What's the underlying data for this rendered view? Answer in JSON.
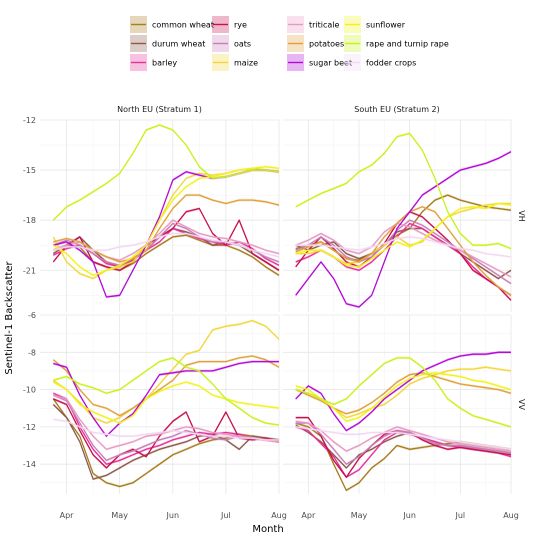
{
  "chart_data": {
    "type": "line",
    "xlabel": "Month",
    "ylabel": "Sentinel-1 Backscatter",
    "x_ticks": [
      "Apr",
      "May",
      "Jun",
      "Jul",
      "Aug"
    ],
    "columns": [
      "North EU (Stratum 1)",
      "South EU (Stratum 2)"
    ],
    "rows": [
      "VH",
      "VV"
    ],
    "x": [
      0,
      0.5,
      1,
      1.5,
      2,
      2.5,
      3,
      3.5,
      4,
      4.5,
      5,
      5.5,
      6,
      6.5,
      7,
      7.5,
      8,
      8.5
    ],
    "ylim": {
      "VH": [
        -23.5,
        -12
      ],
      "VV": [
        -15.6,
        -6
      ]
    },
    "y_ticks": {
      "VH": [
        -21,
        -18,
        -15,
        -12
      ],
      "VV": [
        -14,
        -12,
        -10,
        -8,
        -6
      ]
    },
    "legend": {
      "position": "top",
      "entries": [
        {
          "name": "common wheat",
          "color": "#a67c1c"
        },
        {
          "name": "durum wheat",
          "color": "#8c5a4a"
        },
        {
          "name": "barley",
          "color": "#e8309a"
        },
        {
          "name": "rye",
          "color": "#c8104e"
        },
        {
          "name": "oats",
          "color": "#c87eb8"
        },
        {
          "name": "maize",
          "color": "#f2d63a"
        },
        {
          "name": "triticale",
          "color": "#e899c2"
        },
        {
          "name": "potatoes",
          "color": "#e0a03a"
        },
        {
          "name": "sugar beet",
          "color": "#b40ad8"
        },
        {
          "name": "sunflower",
          "color": "#f2f21a"
        },
        {
          "name": "rape and turnip rape",
          "color": "#c8f21a"
        },
        {
          "name": "fodder crops",
          "color": "#f2d8f2"
        }
      ]
    },
    "panels": {
      "North EU (Stratum 1)|VH": {
        "common wheat": [
          -19.8,
          -19.5,
          -19.6,
          -20.5,
          -20.8,
          -21,
          -20.6,
          -20,
          -19.5,
          -19,
          -18.9,
          -19.2,
          -19.5,
          -19.5,
          -19.8,
          -20.2,
          -20.8,
          -21.3
        ],
        "durum wheat": [
          -20,
          -19.5,
          -19,
          -19.8,
          -20.5,
          -20.8,
          -20.3,
          -19.8,
          -19,
          -18.5,
          -18.7,
          -19,
          -19.5,
          -19.3,
          -19.5,
          -20,
          -20.5,
          -21
        ],
        "barley": [
          -20.1,
          -19.7,
          -19.5,
          -20,
          -20.6,
          -20.8,
          -20.4,
          -19.8,
          -19.3,
          -18.5,
          -18.8,
          -19.1,
          -19.3,
          -19.5,
          -19.3,
          -19.7,
          -20.3,
          -20.7
        ],
        "rye": [
          -20.5,
          -19.5,
          -19,
          -20.5,
          -20.8,
          -21,
          -20.5,
          -19.5,
          -19,
          -18.5,
          -17.5,
          -17.3,
          -18.8,
          -19.5,
          -18,
          -20,
          -20.5,
          -21
        ],
        "oats": [
          -19.5,
          -19.2,
          -19.5,
          -20,
          -20.5,
          -20.7,
          -20.3,
          -19.8,
          -19,
          -18.2,
          -18.5,
          -19,
          -19.3,
          -19.3,
          -19.5,
          -19.8,
          -20.2,
          -20.5
        ],
        "maize": [
          -19,
          -20.5,
          -21.2,
          -21.5,
          -21,
          -20.8,
          -20.5,
          -19.5,
          -18,
          -16.5,
          -15.5,
          -15.2,
          -15.3,
          -15.2,
          -15,
          -14.9,
          -15,
          -15.1
        ],
        "triticale": [
          -19.8,
          -19.5,
          -19.3,
          -19.8,
          -20.2,
          -20.4,
          -20,
          -19.5,
          -18.8,
          -18,
          -18.4,
          -18.8,
          -19,
          -19.1,
          -19.3,
          -19.5,
          -19.8,
          -20
        ],
        "potatoes": [
          -19.3,
          -19.1,
          -19.3,
          -19.8,
          -20.2,
          -20.5,
          -20.3,
          -19.8,
          -18.5,
          -17.3,
          -16.5,
          -16.5,
          -16.8,
          -17,
          -16.8,
          -16.8,
          -16.9,
          -17.1
        ],
        "sugar beet": [
          -19.5,
          -19.3,
          -19.8,
          -20.5,
          -22.6,
          -22.5,
          -21,
          -19.5,
          -17.8,
          -15.6,
          -15.1,
          -15.3,
          -15.5,
          -15.4,
          -15.2,
          -15,
          -15,
          -15.1
        ],
        "sunflower": [
          -19.5,
          -20,
          -20.8,
          -21.3,
          -21,
          -20.7,
          -20.2,
          -19.5,
          -18,
          -16.8,
          -16,
          -15.5,
          -15.4,
          -15.2,
          -15,
          -14.9,
          -14.8,
          -14.9
        ],
        "rape and turnip rape": [
          -18,
          -17.2,
          -16.8,
          -16.3,
          -15.8,
          -15.2,
          -14,
          -12.6,
          -12.3,
          -12.6,
          -13.5,
          -14.8,
          -15.5,
          -15.4,
          -15.2,
          -15,
          -15,
          -15.1
        ],
        "fodder crops": [
          -19.8,
          -19.6,
          -19.6,
          -19.8,
          -19.8,
          -19.6,
          -19.5,
          -19.3,
          -19,
          -18.8,
          -18.8,
          -19,
          -19.2,
          -19.3,
          -19.5,
          -19.8,
          -20,
          -20.2
        ]
      },
      "South EU (Stratum 2)|VH": {
        "common wheat": [
          -19.7,
          -19.5,
          -19.3,
          -19.8,
          -20.3,
          -20.4,
          -20,
          -19.5,
          -18.9,
          -18.5,
          -17.5,
          -16.8,
          -16.5,
          -16.8,
          -17,
          -17.2,
          -17.3,
          -17.4
        ],
        "durum wheat": [
          -19.5,
          -19.8,
          -19.5,
          -19.3,
          -20,
          -20.3,
          -20,
          -19.5,
          -18.7,
          -18.5,
          -18.5,
          -19,
          -19.5,
          -20,
          -20.5,
          -21,
          -21.5,
          -21
        ],
        "barley": [
          -20.5,
          -20.2,
          -19.8,
          -20.2,
          -20.8,
          -21,
          -20.5,
          -19.8,
          -19,
          -18.2,
          -18.5,
          -19,
          -19.5,
          -20,
          -20.8,
          -21.5,
          -22,
          -22.5
        ],
        "rye": [
          -20.8,
          -19.8,
          -19,
          -19.7,
          -20.5,
          -20.8,
          -20.2,
          -19.4,
          -18.2,
          -17.5,
          -17.8,
          -18.5,
          -19.2,
          -20,
          -21,
          -21.5,
          -22,
          -22.8
        ],
        "oats": [
          -19.8,
          -19.5,
          -19,
          -19.5,
          -20.2,
          -20.5,
          -20.2,
          -19.5,
          -18.6,
          -18,
          -18.3,
          -18.8,
          -19.3,
          -19.8,
          -20.3,
          -20.8,
          -21.3,
          -21.8
        ],
        "maize": [
          -20,
          -20,
          -19.8,
          -20.2,
          -20.6,
          -20.5,
          -20,
          -19.5,
          -19,
          -19.5,
          -19.3,
          -18.5,
          -17.8,
          -17.5,
          -17.3,
          -17.1,
          -17,
          -17
        ],
        "triticale": [
          -19.5,
          -19.2,
          -18.8,
          -19.2,
          -19.8,
          -20,
          -19.6,
          -18.7,
          -18.2,
          -18.4,
          -18.8,
          -19.2,
          -19.5,
          -19.8,
          -20.2,
          -20.6,
          -21,
          -21.4
        ],
        "potatoes": [
          -19.9,
          -19.6,
          -19.3,
          -19.8,
          -20.3,
          -20.5,
          -20,
          -19,
          -18.2,
          -17.5,
          -17.2,
          -17.5,
          -18.5,
          -19.5,
          -20.5,
          -21.3,
          -22,
          -22.5
        ],
        "sugar beet": [
          -22.5,
          -21.5,
          -20.5,
          -21.5,
          -23,
          -23.2,
          -22.5,
          -20.5,
          -18.5,
          -17.5,
          -16.5,
          -16,
          -15.5,
          -15,
          -14.8,
          -14.6,
          -14.3,
          -13.9
        ],
        "sunflower": [
          -20,
          -19.8,
          -19.8,
          -20.2,
          -20.7,
          -20.8,
          -20.3,
          -19.8,
          -19.3,
          -19.6,
          -19.2,
          -18.5,
          -17.8,
          -17.3,
          -17.2,
          -17.3,
          -17,
          -17.1
        ],
        "rape and turnip rape": [
          -17.2,
          -16.8,
          -16.4,
          -16.1,
          -15.8,
          -15.1,
          -14.7,
          -14,
          -13,
          -12.8,
          -13.8,
          -15.5,
          -17.5,
          -18.8,
          -19.5,
          -19.5,
          -19.4,
          -19.7
        ],
        "fodder crops": [
          -19.5,
          -19.5,
          -19.5,
          -19.6,
          -19.7,
          -19.8,
          -19.6,
          -19.4,
          -19.1,
          -19,
          -19.1,
          -19.3,
          -19.5,
          -19.7,
          -19.8,
          -20,
          -20.1,
          -20.2
        ]
      },
      "North EU (Stratum 1)|VV": {
        "common wheat": [
          -10.5,
          -11.5,
          -12.5,
          -14.5,
          -15,
          -15.2,
          -15,
          -14.5,
          -14,
          -13.5,
          -13.2,
          -12.9,
          -12.7,
          -12.6,
          -12.4,
          -12.5,
          -12.6,
          -12.7
        ],
        "durum wheat": [
          -10.8,
          -11.5,
          -12.8,
          -14.8,
          -14.6,
          -14.2,
          -13.8,
          -13.5,
          -13.2,
          -13,
          -12.8,
          -12.5,
          -12.4,
          -12.7,
          -13.2,
          -12.5,
          -12.6,
          -12.7
        ],
        "barley": [
          -10.2,
          -10.5,
          -12,
          -13.2,
          -14,
          -13.8,
          -13.5,
          -13.2,
          -13,
          -12.7,
          -12.5,
          -12.3,
          -12.4,
          -12.3,
          -12.4,
          -12.6,
          -12.7,
          -12.8
        ],
        "rye": [
          -10.5,
          -10.8,
          -12.2,
          -13.5,
          -14.2,
          -13.5,
          -13.2,
          -13.6,
          -12.5,
          -11.7,
          -11.2,
          -12.8,
          -12.5,
          -11.2,
          -12.6,
          -12.7,
          -12.6,
          -12.8
        ],
        "oats": [
          -10.3,
          -10.6,
          -11.8,
          -13,
          -13.8,
          -13.5,
          -13.3,
          -13,
          -12.7,
          -12.5,
          -12.2,
          -12.4,
          -12.6,
          -12.7,
          -12.5,
          -12.6,
          -12.7,
          -12.8
        ],
        "maize": [
          -9.5,
          -10,
          -10.7,
          -11.5,
          -11.8,
          -11.5,
          -11,
          -10.5,
          -9.7,
          -8.9,
          -8.1,
          -7.9,
          -6.8,
          -6.6,
          -6.5,
          -6.3,
          -6.6,
          -7.3
        ],
        "triticale": [
          -10.3,
          -10.5,
          -11.6,
          -12.5,
          -13.2,
          -13,
          -12.8,
          -12.5,
          -12.4,
          -12.2,
          -12,
          -12.1,
          -12.3,
          -12.4,
          -12.5,
          -12.6,
          -12.7,
          -12.8
        ],
        "potatoes": [
          -8.4,
          -9,
          -10,
          -10.8,
          -11,
          -11.4,
          -11,
          -10.5,
          -10,
          -9.5,
          -8.7,
          -8.5,
          -8.5,
          -8.5,
          -8.3,
          -8.2,
          -8.4,
          -8.8
        ],
        "sugar beet": [
          -8.6,
          -8.8,
          -10.3,
          -11.5,
          -12.5,
          -11.8,
          -11.3,
          -10.3,
          -9.2,
          -9.1,
          -9,
          -9,
          -9,
          -8.8,
          -8.6,
          -8.5,
          -8.5,
          -8.5
        ],
        "sunflower": [
          -9.6,
          -10,
          -10.8,
          -11.2,
          -11.5,
          -11.8,
          -11.4,
          -10.5,
          -10.1,
          -9.8,
          -9.6,
          -9.8,
          -10.3,
          -10.5,
          -10.7,
          -10.8,
          -10.9,
          -11
        ],
        "rape and turnip rape": [
          -9.5,
          -9.3,
          -9.7,
          -9.9,
          -10.2,
          -10,
          -9.5,
          -9,
          -8.5,
          -8.3,
          -8.8,
          -9,
          -9.7,
          -10.5,
          -11,
          -11.5,
          -11.8,
          -11.9
        ],
        "fodder crops": [
          -11.6,
          -11.7,
          -12,
          -12.3,
          -12.4,
          -12.5,
          -12.5,
          -12.4,
          -12.3,
          -12.2,
          -12.3,
          -12.4,
          -12.5,
          -12.5,
          -12.6,
          -12.6,
          -12.7,
          -12.7
        ]
      },
      "South EU (Stratum 2)|VV": {
        "common wheat": [
          -11.8,
          -12,
          -12.5,
          -14,
          -15.4,
          -15,
          -14.2,
          -13.7,
          -13,
          -13.2,
          -13.1,
          -13,
          -12.9,
          -12.8,
          -12.9,
          -13,
          -13.1,
          -13.2
        ],
        "durum wheat": [
          -11.9,
          -12.3,
          -12.8,
          -13.5,
          -14.2,
          -13.5,
          -13.2,
          -12.8,
          -12.5,
          -12.3,
          -12.6,
          -12.8,
          -13,
          -13,
          -13.1,
          -13.2,
          -13.3,
          -13.4
        ],
        "barley": [
          -12,
          -12.2,
          -12.9,
          -13.6,
          -14.7,
          -14.3,
          -13.5,
          -12.7,
          -12.3,
          -12.4,
          -12.6,
          -12.8,
          -13,
          -13.1,
          -13.2,
          -13.3,
          -13.4,
          -13.6
        ],
        "rye": [
          -11.5,
          -11.5,
          -12.5,
          -13.8,
          -14.7,
          -13.7,
          -13,
          -12.4,
          -12.2,
          -12.3,
          -12.7,
          -13,
          -13.2,
          -13.1,
          -13.2,
          -13.3,
          -13.4,
          -13.5
        ],
        "oats": [
          -11.8,
          -11.8,
          -12.4,
          -13.2,
          -14,
          -13.6,
          -13,
          -12.5,
          -12.2,
          -12.3,
          -12.6,
          -12.9,
          -13,
          -13,
          -13.1,
          -13.2,
          -13.3,
          -13.4
        ],
        "maize": [
          -10,
          -10.2,
          -10.5,
          -11,
          -11.5,
          -11.3,
          -11,
          -10.8,
          -10.3,
          -9.7,
          -9.4,
          -9.2,
          -9,
          -8.9,
          -8.9,
          -8.8,
          -8.9,
          -9
        ],
        "triticale": [
          -11.7,
          -11.8,
          -12.2,
          -12.8,
          -13.3,
          -13,
          -12.6,
          -12.3,
          -12,
          -12.2,
          -12.4,
          -12.6,
          -12.8,
          -12.9,
          -13,
          -13.1,
          -13.2,
          -13.3
        ],
        "potatoes": [
          -10,
          -10.3,
          -10.6,
          -11,
          -11.3,
          -11.1,
          -10.7,
          -10.2,
          -9.6,
          -9.2,
          -9.1,
          -9.3,
          -9.5,
          -9.7,
          -9.8,
          -9.9,
          -10,
          -10.2
        ],
        "sugar beet": [
          -10.5,
          -9.8,
          -10.2,
          -11.3,
          -12.2,
          -11.8,
          -11.2,
          -10.5,
          -10,
          -9.5,
          -9,
          -8.7,
          -8.4,
          -8.2,
          -8.1,
          -8.1,
          -8,
          -8
        ],
        "sunflower": [
          -9.8,
          -10,
          -10.5,
          -11,
          -11.7,
          -11.5,
          -11,
          -10.4,
          -9.8,
          -9.4,
          -9.2,
          -9.1,
          -9.2,
          -9.3,
          -9.5,
          -9.6,
          -9.8,
          -10
        ],
        "rape and turnip rape": [
          -10,
          -10.2,
          -10.5,
          -10.8,
          -10.5,
          -9.8,
          -9.2,
          -8.6,
          -8.3,
          -8.3,
          -8.8,
          -9.5,
          -10.5,
          -11,
          -11.4,
          -11.6,
          -11.8,
          -12
        ],
        "fodder crops": [
          -12,
          -12.1,
          -12.2,
          -12.3,
          -12.4,
          -12.4,
          -12.3,
          -12.3,
          -12.3,
          -12.4,
          -12.5,
          -12.6,
          -12.7,
          -12.8,
          -12.9,
          -13,
          -13.1,
          -13.2
        ]
      }
    }
  }
}
